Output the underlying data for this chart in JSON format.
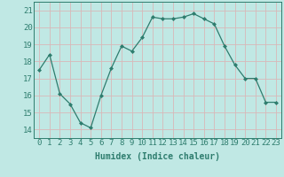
{
  "x": [
    0,
    1,
    2,
    3,
    4,
    5,
    6,
    7,
    8,
    9,
    10,
    11,
    12,
    13,
    14,
    15,
    16,
    17,
    18,
    19,
    20,
    21,
    22,
    23
  ],
  "y": [
    17.5,
    18.4,
    16.1,
    15.5,
    14.4,
    14.1,
    16.0,
    17.6,
    18.9,
    18.6,
    19.4,
    20.6,
    20.5,
    20.5,
    20.6,
    20.8,
    20.5,
    20.2,
    18.9,
    17.8,
    17.0,
    17.0,
    15.6,
    15.6
  ],
  "line_color": "#2e7d6e",
  "marker_color": "#2e7d6e",
  "bg_color": "#c0e8e4",
  "grid_color": "#d8b8b8",
  "xlabel": "Humidex (Indice chaleur)",
  "ylim": [
    13.5,
    21.5
  ],
  "xlim": [
    -0.5,
    23.5
  ],
  "yticks": [
    14,
    15,
    16,
    17,
    18,
    19,
    20,
    21
  ],
  "xticks": [
    0,
    1,
    2,
    3,
    4,
    5,
    6,
    7,
    8,
    9,
    10,
    11,
    12,
    13,
    14,
    15,
    16,
    17,
    18,
    19,
    20,
    21,
    22,
    23
  ],
  "title_color": "#2e7d6e",
  "label_fontsize": 7.0,
  "tick_fontsize": 6.5,
  "line_width": 0.9,
  "marker_size": 2.0
}
